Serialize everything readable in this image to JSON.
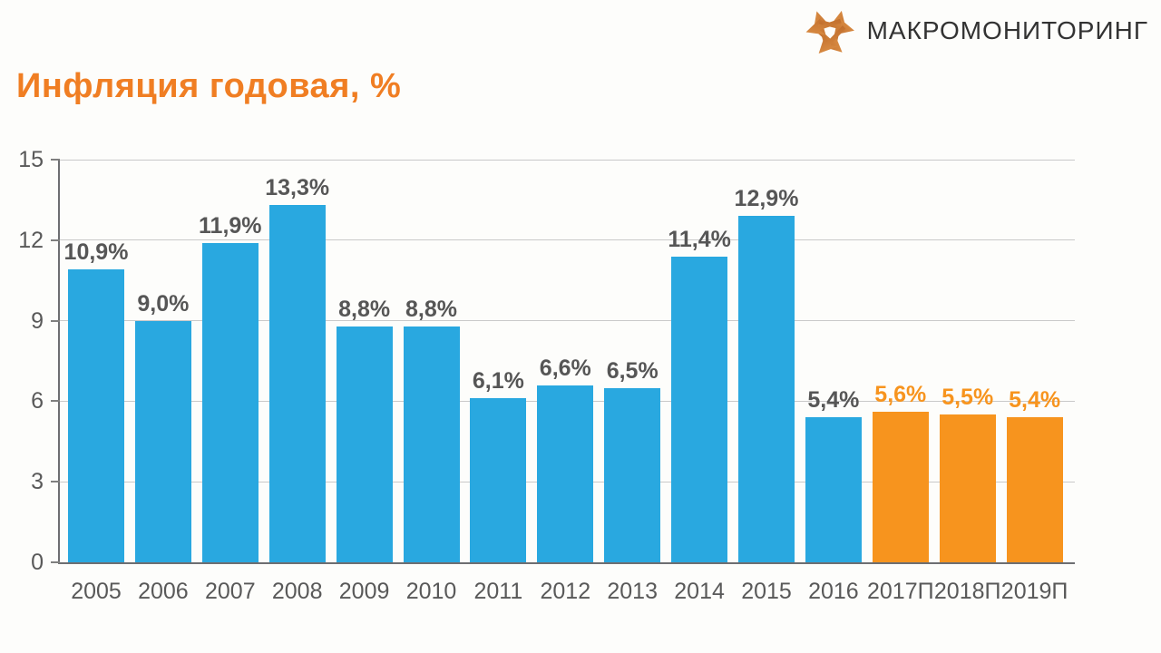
{
  "brand": {
    "name": "МАКРОМОНИТОРИНГ",
    "icon": "macromonitoring-arrows-logo-icon",
    "icon_color_dark": "#B96526",
    "icon_color_light": "#E09449",
    "text_color": "#333333"
  },
  "title": "Инфляция годовая, %",
  "title_color": "#F07E23",
  "chart_data": {
    "type": "bar",
    "title": "Инфляция годовая, %",
    "categories": [
      "2005",
      "2006",
      "2007",
      "2008",
      "2009",
      "2010",
      "2011",
      "2012",
      "2013",
      "2014",
      "2015",
      "2016",
      "2017П",
      "2018П",
      "2019П"
    ],
    "values": [
      10.9,
      9.0,
      11.9,
      13.3,
      8.8,
      8.8,
      6.1,
      6.6,
      6.5,
      11.4,
      12.9,
      5.4,
      5.6,
      5.5,
      5.4
    ],
    "data_labels": [
      "10,9%",
      "9,0%",
      "11,9%",
      "13,3%",
      "8,8%",
      "8,8%",
      "6,1%",
      "6,6%",
      "6,5%",
      "11,4%",
      "12,9%",
      "5,4%",
      "5,6%",
      "5,5%",
      "5,4%"
    ],
    "forecast_start_index": 12,
    "bar_color_actual": "#29A8E0",
    "bar_color_forecast": "#F7941E",
    "label_color_actual": "#565656",
    "label_color_forecast": "#F7941E",
    "axis_text_color": "#595959",
    "gridline_color": "#c9c9c9",
    "axis_line_color": "#6d6e71",
    "ylim": [
      0,
      15
    ],
    "yticks": [
      0,
      3,
      6,
      9,
      12,
      15
    ],
    "grid": "horizontal",
    "legend": "none",
    "xlabel": "",
    "ylabel": ""
  }
}
